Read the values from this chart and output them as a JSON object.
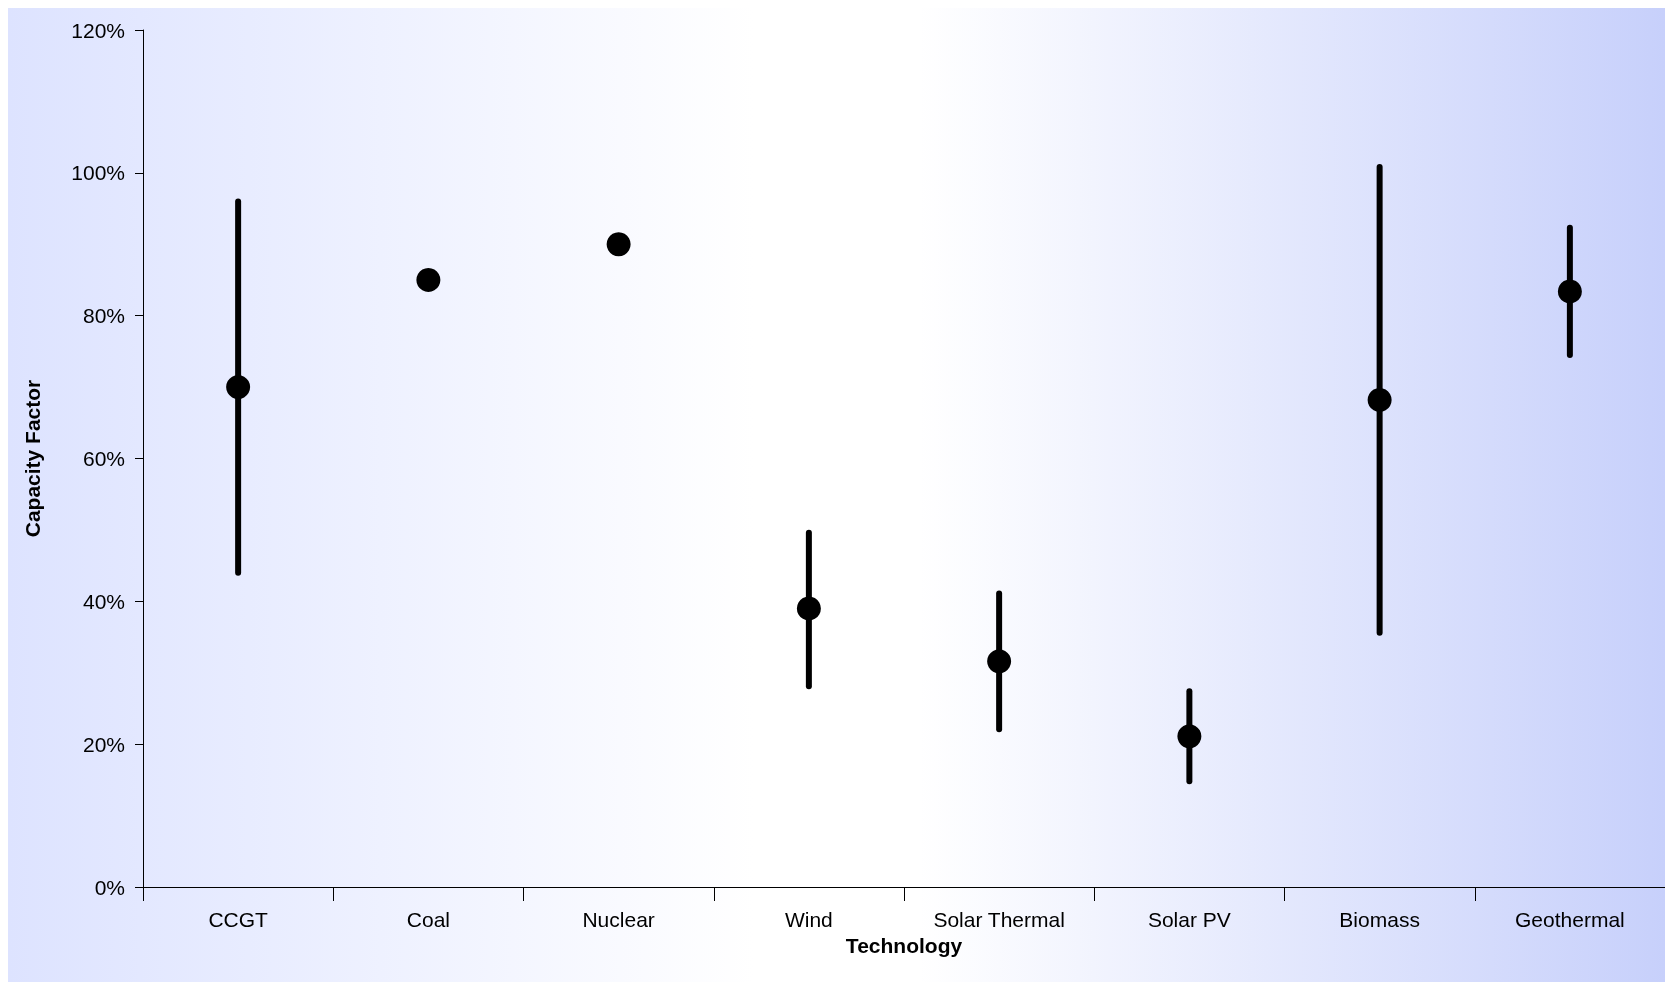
{
  "chart_data": {
    "type": "scatter",
    "xlabel": "Technology",
    "ylabel": "Capacity Factor",
    "categories": [
      "CCGT",
      "Coal",
      "Nuclear",
      "Wind",
      "Solar Thermal",
      "Solar PV",
      "Biomass",
      "Geothermal"
    ],
    "values": [
      70,
      85,
      90,
      39,
      31.6,
      21.1,
      68.2,
      83.4
    ],
    "errors": [
      [
        44,
        96
      ],
      null,
      null,
      [
        28.1,
        49.6
      ],
      [
        22.1,
        41.1
      ],
      [
        14.8,
        27.4
      ],
      [
        35.6,
        100.8
      ],
      [
        74.5,
        92.3
      ]
    ],
    "color": "#000000",
    "marker": "circle",
    "ylim": [
      0,
      120
    ],
    "yticks": [
      {
        "value": 0,
        "label": "0%"
      },
      {
        "value": 20,
        "label": "20%"
      },
      {
        "value": 40,
        "label": "40%"
      },
      {
        "value": 60,
        "label": "60%"
      },
      {
        "value": 80,
        "label": "80%"
      },
      {
        "value": 100,
        "label": "100%"
      },
      {
        "value": 120,
        "label": "120%"
      }
    ],
    "grid": false
  }
}
